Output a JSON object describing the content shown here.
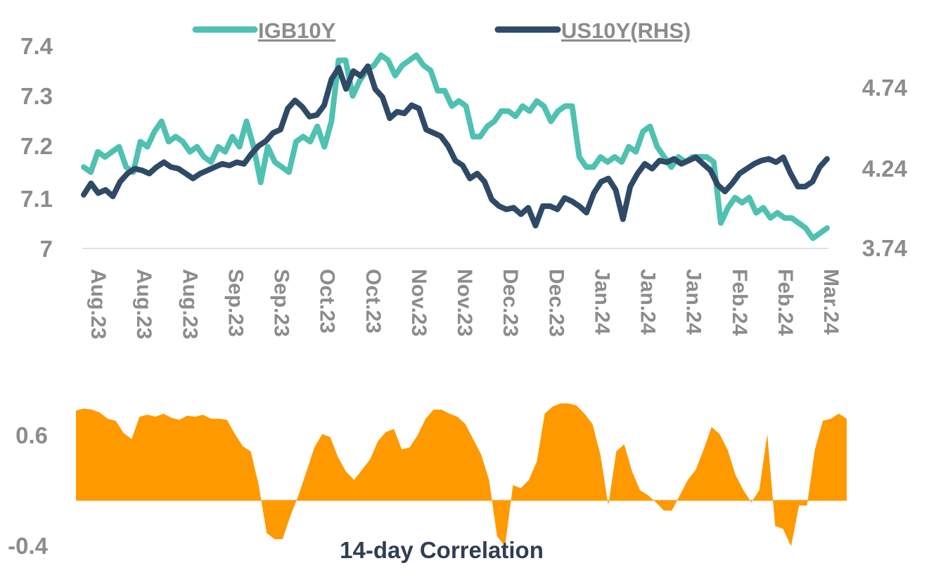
{
  "chart_data": [
    {
      "type": "line",
      "title": "",
      "legend": {
        "placement": "top-center",
        "entries": [
          "IGB10Y",
          "US10Y(RHS)"
        ]
      },
      "x_tick_labels": [
        "Aug.23",
        "Aug.23",
        "Aug.23",
        "Sep.23",
        "Sep.23",
        "Oct.23",
        "Oct.23",
        "Nov.23",
        "Nov.23",
        "Dec.23",
        "Dec.23",
        "Jan.24",
        "Jan.24",
        "Jan.24",
        "Feb.24",
        "Feb.24",
        "Mar.24"
      ],
      "y_left": {
        "ticks": [
          "7",
          "7.1",
          "7.2",
          "7.3",
          "7.4"
        ],
        "range": [
          7.0,
          7.4
        ]
      },
      "y_right": {
        "ticks": [
          "3.74",
          "4.24",
          "4.74"
        ],
        "range": [
          3.74,
          4.99
        ]
      },
      "grid": false,
      "colors": {
        "IGB10Y": "#4fc1b1",
        "US10Y(RHS)": "#2f4a66",
        "baseline": "#d9e2ec"
      },
      "series": [
        {
          "name": "IGB10Y",
          "axis": "left",
          "values": [
            7.16,
            7.15,
            7.19,
            7.18,
            7.19,
            7.2,
            7.16,
            7.15,
            7.21,
            7.2,
            7.23,
            7.25,
            7.21,
            7.22,
            7.21,
            7.19,
            7.2,
            7.18,
            7.17,
            7.2,
            7.19,
            7.22,
            7.2,
            7.25,
            7.2,
            7.13,
            7.2,
            7.17,
            7.16,
            7.15,
            7.21,
            7.22,
            7.21,
            7.24,
            7.2,
            7.25,
            7.37,
            7.37,
            7.3,
            7.33,
            7.35,
            7.36,
            7.38,
            7.37,
            7.34,
            7.36,
            7.37,
            7.38,
            7.36,
            7.35,
            7.31,
            7.31,
            7.28,
            7.29,
            7.28,
            7.22,
            7.22,
            7.24,
            7.25,
            7.27,
            7.27,
            7.26,
            7.28,
            7.27,
            7.29,
            7.28,
            7.25,
            7.27,
            7.28,
            7.28,
            7.18,
            7.16,
            7.16,
            7.18,
            7.17,
            7.18,
            7.17,
            7.2,
            7.19,
            7.23,
            7.24,
            7.2,
            7.18,
            7.16,
            7.18,
            7.17,
            7.18,
            7.18,
            7.18,
            7.17,
            7.05,
            7.08,
            7.1,
            7.09,
            7.1,
            7.07,
            7.08,
            7.06,
            7.07,
            7.06,
            7.06,
            7.05,
            7.04,
            7.02,
            7.03,
            7.04
          ]
        },
        {
          "name": "US10Y(RHS)",
          "axis": "right",
          "values": [
            4.07,
            4.14,
            4.08,
            4.1,
            4.06,
            4.15,
            4.2,
            4.23,
            4.22,
            4.2,
            4.24,
            4.27,
            4.24,
            4.23,
            4.2,
            4.17,
            4.2,
            4.22,
            4.24,
            4.26,
            4.25,
            4.27,
            4.26,
            4.32,
            4.37,
            4.4,
            4.45,
            4.47,
            4.6,
            4.65,
            4.61,
            4.55,
            4.56,
            4.62,
            4.78,
            4.85,
            4.72,
            4.83,
            4.8,
            4.86,
            4.72,
            4.67,
            4.54,
            4.58,
            4.57,
            4.62,
            4.6,
            4.47,
            4.45,
            4.43,
            4.37,
            4.28,
            4.25,
            4.17,
            4.2,
            4.15,
            4.04,
            4.0,
            3.98,
            3.99,
            3.95,
            3.99,
            3.88,
            4.0,
            4.0,
            3.98,
            4.05,
            4.03,
            4.0,
            3.96,
            4.08,
            4.15,
            4.17,
            4.1,
            3.92,
            4.12,
            4.2,
            4.26,
            4.23,
            4.28,
            4.27,
            4.29,
            4.26,
            4.28,
            4.3,
            4.26,
            4.22,
            4.13,
            4.09,
            4.14,
            4.2,
            4.23,
            4.26,
            4.28,
            4.29,
            4.27,
            4.3,
            4.2,
            4.12,
            4.12,
            4.15,
            4.24,
            4.29
          ]
        }
      ]
    },
    {
      "type": "area",
      "title": "14-day Correlation",
      "y_ticks": [
        "0.6",
        "-0.4"
      ],
      "color": "#ff9900",
      "values": [
        0.88,
        0.9,
        0.89,
        0.86,
        0.8,
        0.78,
        0.66,
        0.6,
        0.82,
        0.84,
        0.82,
        0.85,
        0.81,
        0.79,
        0.83,
        0.82,
        0.84,
        0.8,
        0.8,
        0.79,
        0.65,
        0.53,
        0.48,
        0.15,
        -0.32,
        -0.38,
        -0.38,
        -0.15,
        0.05,
        0.28,
        0.52,
        0.65,
        0.62,
        0.42,
        0.28,
        0.2,
        0.3,
        0.4,
        0.58,
        0.67,
        0.7,
        0.5,
        0.52,
        0.64,
        0.8,
        0.89,
        0.89,
        0.85,
        0.82,
        0.75,
        0.6,
        0.45,
        0.2,
        -0.35,
        -0.45,
        0.15,
        0.12,
        0.2,
        0.38,
        0.85,
        0.92,
        0.95,
        0.95,
        0.93,
        0.85,
        0.75,
        0.45,
        -0.05,
        0.48,
        0.55,
        0.28,
        0.1,
        0.05,
        -0.02,
        -0.1,
        -0.1,
        0.05,
        0.2,
        0.3,
        0.5,
        0.72,
        0.65,
        0.5,
        0.25,
        0.1,
        -0.02,
        0.1,
        0.65,
        -0.25,
        -0.28,
        -0.45,
        -0.05,
        -0.05,
        0.5,
        0.78,
        0.8,
        0.85,
        0.8
      ]
    }
  ]
}
